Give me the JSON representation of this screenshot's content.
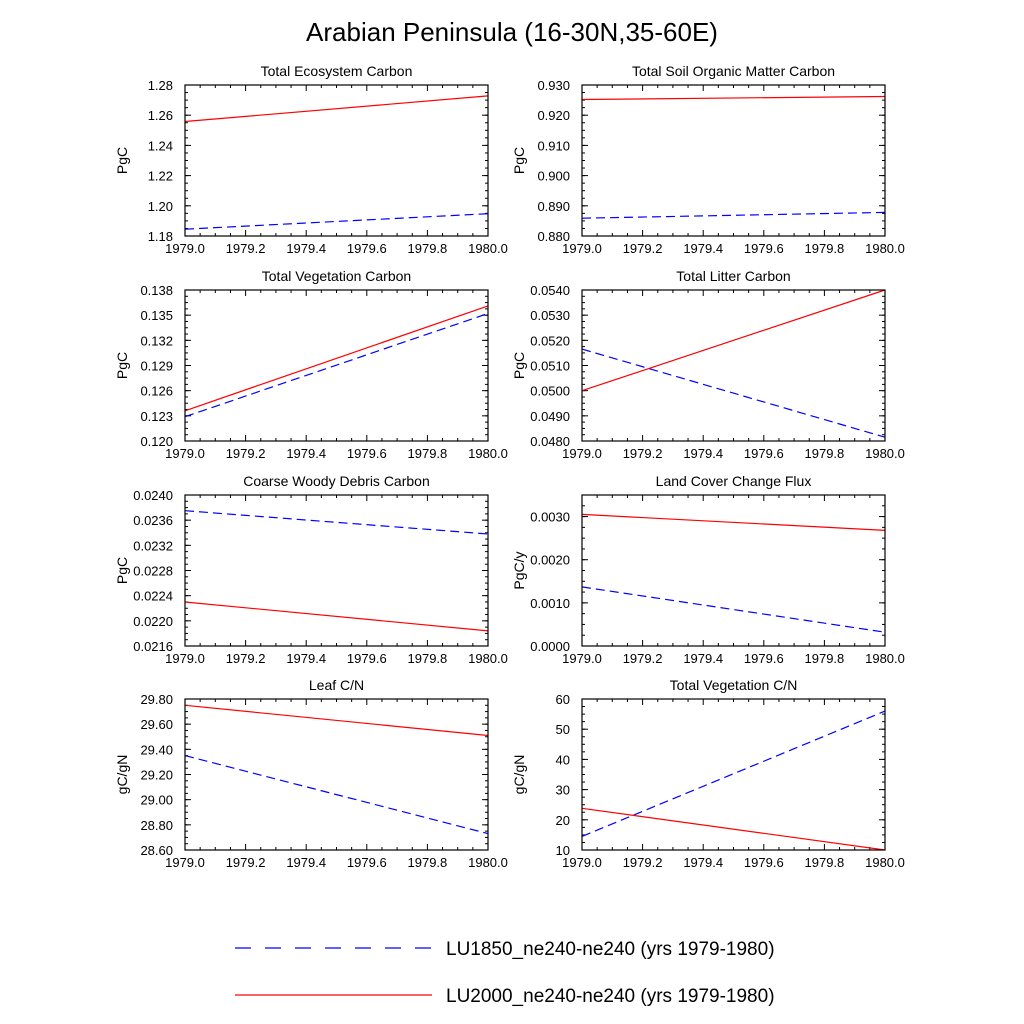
{
  "figure": {
    "title": "Arabian Peninsula (16-30N,35-60E)"
  },
  "legend": [
    {
      "label": "LU1850_ne240-ne240 (yrs 1979-1980)",
      "color": "#0000ff",
      "dash": "dashed"
    },
    {
      "label": "LU2000_ne240-ne240 (yrs 1979-1980)",
      "color": "#ff0000",
      "dash": "solid"
    }
  ],
  "chart_data": [
    {
      "type": "line",
      "title": "Total Ecosystem Carbon",
      "xlabel": "",
      "ylabel": "PgC",
      "xlim": [
        1979.0,
        1980.0
      ],
      "ylim": [
        1.18,
        1.28
      ],
      "xticks": [
        "1979.0",
        "1979.2",
        "1979.4",
        "1979.6",
        "1979.8",
        "1980.0"
      ],
      "yticks": [
        "1.18",
        "1.20",
        "1.22",
        "1.24",
        "1.26",
        "1.28"
      ],
      "x": [
        1979.0,
        1980.0
      ],
      "series": [
        {
          "name": "LU1850_ne240-ne240 (yrs 1979-1980)",
          "color": "#0000ff",
          "dash": "dashed",
          "values": [
            1.1845,
            1.1948
          ]
        },
        {
          "name": "LU2000_ne240-ne240 (yrs 1979-1980)",
          "color": "#ff0000",
          "dash": "solid",
          "values": [
            1.2558,
            1.2728
          ]
        }
      ]
    },
    {
      "type": "line",
      "title": "Total Soil Organic Matter Carbon",
      "xlabel": "",
      "ylabel": "PgC",
      "xlim": [
        1979.0,
        1980.0
      ],
      "ylim": [
        0.88,
        0.93
      ],
      "xticks": [
        "1979.0",
        "1979.2",
        "1979.4",
        "1979.6",
        "1979.8",
        "1980.0"
      ],
      "yticks": [
        "0.880",
        "0.890",
        "0.900",
        "0.910",
        "0.920",
        "0.930"
      ],
      "x": [
        1979.0,
        1980.0
      ],
      "series": [
        {
          "name": "LU1850_ne240-ne240 (yrs 1979-1980)",
          "color": "#0000ff",
          "dash": "dashed",
          "values": [
            0.8859,
            0.8878
          ]
        },
        {
          "name": "LU2000_ne240-ne240 (yrs 1979-1980)",
          "color": "#ff0000",
          "dash": "solid",
          "values": [
            0.9252,
            0.9262
          ]
        }
      ]
    },
    {
      "type": "line",
      "title": "Total Vegetation Carbon",
      "xlabel": "",
      "ylabel": "PgC",
      "xlim": [
        1979.0,
        1980.0
      ],
      "ylim": [
        0.12,
        0.138
      ],
      "xticks": [
        "1979.0",
        "1979.2",
        "1979.4",
        "1979.6",
        "1979.8",
        "1980.0"
      ],
      "yticks": [
        "0.120",
        "0.123",
        "0.126",
        "0.129",
        "0.132",
        "0.135",
        "0.138"
      ],
      "x": [
        1979.0,
        1980.0
      ],
      "series": [
        {
          "name": "LU1850_ne240-ne240 (yrs 1979-1980)",
          "color": "#0000ff",
          "dash": "dashed",
          "values": [
            0.1229,
            0.1352
          ]
        },
        {
          "name": "LU2000_ne240-ne240 (yrs 1979-1980)",
          "color": "#ff0000",
          "dash": "solid",
          "values": [
            0.1236,
            0.1361
          ]
        }
      ]
    },
    {
      "type": "line",
      "title": "Total Litter Carbon",
      "xlabel": "",
      "ylabel": "PgC",
      "xlim": [
        1979.0,
        1980.0
      ],
      "ylim": [
        0.048,
        0.054
      ],
      "xticks": [
        "1979.0",
        "1979.2",
        "1979.4",
        "1979.6",
        "1979.8",
        "1980.0"
      ],
      "yticks": [
        "0.0480",
        "0.0490",
        "0.0500",
        "0.0510",
        "0.0520",
        "0.0530",
        "0.0540"
      ],
      "x": [
        1979.0,
        1980.0
      ],
      "series": [
        {
          "name": "LU1850_ne240-ne240 (yrs 1979-1980)",
          "color": "#0000ff",
          "dash": "dashed",
          "values": [
            0.05165,
            0.04815
          ]
        },
        {
          "name": "LU2000_ne240-ne240 (yrs 1979-1980)",
          "color": "#ff0000",
          "dash": "solid",
          "values": [
            0.05,
            0.054
          ]
        }
      ]
    },
    {
      "type": "line",
      "title": "Coarse Woody Debris Carbon",
      "xlabel": "",
      "ylabel": "PgC",
      "xlim": [
        1979.0,
        1980.0
      ],
      "ylim": [
        0.0216,
        0.024
      ],
      "xticks": [
        "1979.0",
        "1979.2",
        "1979.4",
        "1979.6",
        "1979.8",
        "1980.0"
      ],
      "yticks": [
        "0.0216",
        "0.0220",
        "0.0224",
        "0.0228",
        "0.0232",
        "0.0236",
        "0.0240"
      ],
      "x": [
        1979.0,
        1980.0
      ],
      "series": [
        {
          "name": "LU1850_ne240-ne240 (yrs 1979-1980)",
          "color": "#0000ff",
          "dash": "dashed",
          "values": [
            0.02375,
            0.02338
          ]
        },
        {
          "name": "LU2000_ne240-ne240 (yrs 1979-1980)",
          "color": "#ff0000",
          "dash": "solid",
          "values": [
            0.0223,
            0.02184
          ]
        }
      ]
    },
    {
      "type": "line",
      "title": "Land Cover Change Flux",
      "xlabel": "",
      "ylabel": "PgC/y",
      "xlim": [
        1979.0,
        1980.0
      ],
      "ylim": [
        0.0,
        0.0035
      ],
      "xticks": [
        "1979.0",
        "1979.2",
        "1979.4",
        "1979.6",
        "1979.8",
        "1980.0"
      ],
      "yticks": [
        "0.0000",
        "0.0010",
        "0.0020",
        "0.0030"
      ],
      "x": [
        1979.0,
        1980.0
      ],
      "series": [
        {
          "name": "LU1850_ne240-ne240 (yrs 1979-1980)",
          "color": "#0000ff",
          "dash": "dashed",
          "values": [
            0.00137,
            0.00032
          ]
        },
        {
          "name": "LU2000_ne240-ne240 (yrs 1979-1980)",
          "color": "#ff0000",
          "dash": "solid",
          "values": [
            0.00305,
            0.00268
          ]
        }
      ]
    },
    {
      "type": "line",
      "title": "Leaf C/N",
      "xlabel": "",
      "ylabel": "gC/gN",
      "xlim": [
        1979.0,
        1980.0
      ],
      "ylim": [
        28.6,
        29.8
      ],
      "xticks": [
        "1979.0",
        "1979.2",
        "1979.4",
        "1979.6",
        "1979.8",
        "1980.0"
      ],
      "yticks": [
        "28.60",
        "28.80",
        "29.00",
        "29.20",
        "29.40",
        "29.60",
        "29.80"
      ],
      "x": [
        1979.0,
        1980.0
      ],
      "series": [
        {
          "name": "LU1850_ne240-ne240 (yrs 1979-1980)",
          "color": "#0000ff",
          "dash": "dashed",
          "values": [
            29.35,
            28.73
          ]
        },
        {
          "name": "LU2000_ne240-ne240 (yrs 1979-1980)",
          "color": "#ff0000",
          "dash": "solid",
          "values": [
            29.75,
            29.51
          ]
        }
      ]
    },
    {
      "type": "line",
      "title": "Total Vegetation C/N",
      "xlabel": "",
      "ylabel": "gC/gN",
      "xlim": [
        1979.0,
        1980.0
      ],
      "ylim": [
        10,
        60
      ],
      "xticks": [
        "1979.0",
        "1979.2",
        "1979.4",
        "1979.6",
        "1979.8",
        "1980.0"
      ],
      "yticks": [
        "10",
        "20",
        "30",
        "40",
        "50",
        "60"
      ],
      "x": [
        1979.0,
        1980.0
      ],
      "series": [
        {
          "name": "LU1850_ne240-ne240 (yrs 1979-1980)",
          "color": "#0000ff",
          "dash": "dashed",
          "values": [
            14.5,
            56.0
          ]
        },
        {
          "name": "LU2000_ne240-ne240 (yrs 1979-1980)",
          "color": "#ff0000",
          "dash": "solid",
          "values": [
            23.8,
            10.0
          ]
        }
      ]
    }
  ]
}
